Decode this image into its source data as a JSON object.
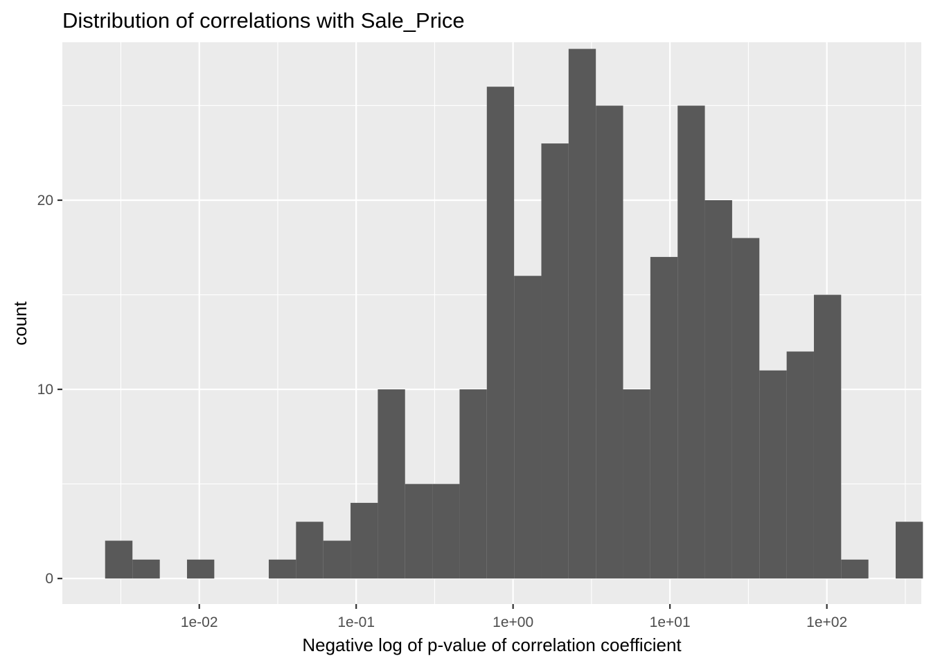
{
  "chart_data": {
    "type": "bar",
    "title": "Distribution of correlations with Sale_Price",
    "xlabel": "Negative log of p-value of correlation coefficient",
    "ylabel": "count",
    "x_scale": "log10",
    "x_ticks": [
      {
        "value": 0.01,
        "label": "1e-02"
      },
      {
        "value": 0.1,
        "label": "1e-01"
      },
      {
        "value": 1,
        "label": "1e+00"
      },
      {
        "value": 10,
        "label": "1e+01"
      },
      {
        "value": 100,
        "label": "1e+02"
      }
    ],
    "y_ticks": [
      {
        "value": 0,
        "label": "0"
      },
      {
        "value": 10,
        "label": "10"
      },
      {
        "value": 20,
        "label": "20"
      }
    ],
    "xlim": [
      0.00134,
      400
    ],
    "ylim": [
      -1.35,
      28.35
    ],
    "grid": true,
    "bins": [
      {
        "x_min": 0.00251,
        "x_max": 0.00375,
        "count": 2
      },
      {
        "x_min": 0.00375,
        "x_max": 0.0056,
        "count": 1
      },
      {
        "x_min": 0.0056,
        "x_max": 0.00835,
        "count": 0
      },
      {
        "x_min": 0.00835,
        "x_max": 0.01246,
        "count": 1
      },
      {
        "x_min": 0.01246,
        "x_max": 0.01858,
        "count": 0
      },
      {
        "x_min": 0.01858,
        "x_max": 0.02772,
        "count": 0
      },
      {
        "x_min": 0.02772,
        "x_max": 0.04136,
        "count": 1
      },
      {
        "x_min": 0.04136,
        "x_max": 0.06171,
        "count": 3
      },
      {
        "x_min": 0.06171,
        "x_max": 0.09206,
        "count": 2
      },
      {
        "x_min": 0.09206,
        "x_max": 0.13734,
        "count": 4
      },
      {
        "x_min": 0.13734,
        "x_max": 0.2049,
        "count": 10
      },
      {
        "x_min": 0.2049,
        "x_max": 0.30569,
        "count": 5
      },
      {
        "x_min": 0.30569,
        "x_max": 0.45604,
        "count": 5
      },
      {
        "x_min": 0.45604,
        "x_max": 0.68036,
        "count": 10
      },
      {
        "x_min": 0.68036,
        "x_max": 1.01502,
        "count": 26
      },
      {
        "x_min": 1.01502,
        "x_max": 1.51429,
        "count": 16
      },
      {
        "x_min": 1.51429,
        "x_max": 2.25913,
        "count": 23
      },
      {
        "x_min": 2.25913,
        "x_max": 3.37035,
        "count": 28
      },
      {
        "x_min": 3.37035,
        "x_max": 5.02814,
        "count": 25
      },
      {
        "x_min": 5.02814,
        "x_max": 7.50137,
        "count": 10
      },
      {
        "x_min": 7.50137,
        "x_max": 11.19112,
        "count": 17
      },
      {
        "x_min": 11.19112,
        "x_max": 16.69575,
        "count": 25
      },
      {
        "x_min": 16.69575,
        "x_max": 24.90802,
        "count": 20
      },
      {
        "x_min": 24.90802,
        "x_max": 37.15982,
        "count": 18
      },
      {
        "x_min": 37.15982,
        "x_max": 55.43798,
        "count": 11
      },
      {
        "x_min": 55.43798,
        "x_max": 82.70673,
        "count": 12
      },
      {
        "x_min": 82.70673,
        "x_max": 123.38817,
        "count": 15
      },
      {
        "x_min": 123.38817,
        "x_max": 184.08015,
        "count": 1
      },
      {
        "x_min": 184.08015,
        "x_max": 274.62518,
        "count": 0
      },
      {
        "x_min": 274.62518,
        "x_max": 409.70743,
        "count": 3
      }
    ],
    "colors": {
      "panel_background": "#ebebeb",
      "grid_major": "#ffffff",
      "bar_fill": "#595959",
      "tick_label": "#4d4d4d",
      "tick_mark": "#333333"
    }
  }
}
